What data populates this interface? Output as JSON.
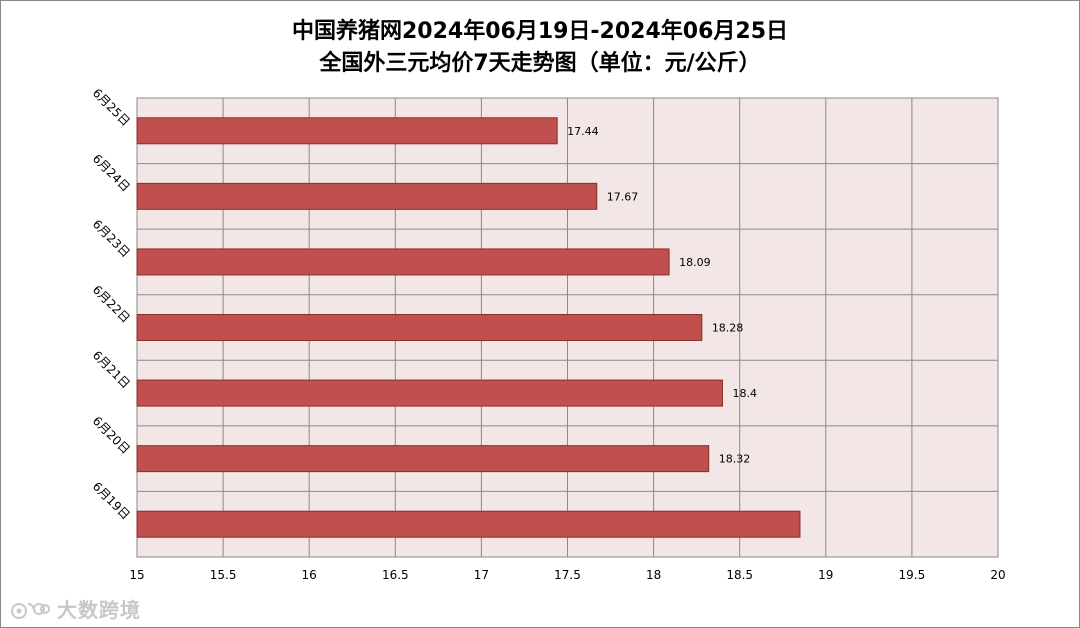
{
  "chart_data": {
    "type": "bar",
    "orientation": "horizontal",
    "title_lines": [
      "中国养猪网2024年06月19日-2024年06月25日",
      "全国外三元均价7天走势图（单位：元/公斤）"
    ],
    "categories": [
      "6月25日",
      "6月24日",
      "6月23日",
      "6月22日",
      "6月21日",
      "6月20日",
      "6月19日"
    ],
    "values": [
      17.44,
      17.67,
      18.09,
      18.28,
      18.4,
      18.32,
      18.85
    ],
    "data_labels": [
      "17.44",
      "17.67",
      "18.09",
      "18.28",
      "18.4",
      "18.32",
      ""
    ],
    "xlim": [
      15,
      20
    ],
    "x_ticks": [
      "15",
      "15.5",
      "16",
      "16.5",
      "17",
      "17.5",
      "18",
      "18.5",
      "19",
      "19.5",
      "20"
    ],
    "xlabel": "",
    "ylabel": "",
    "grid": true,
    "legend": "none",
    "colors": {
      "bar_fill": "#c0504d",
      "bar_stroke": "#8c2d2b",
      "plot_background": "#f2e6e6",
      "grid": "#8a8a8a"
    }
  },
  "watermark": {
    "icon": "weibo-logo-icon",
    "text": "大数跨境"
  }
}
